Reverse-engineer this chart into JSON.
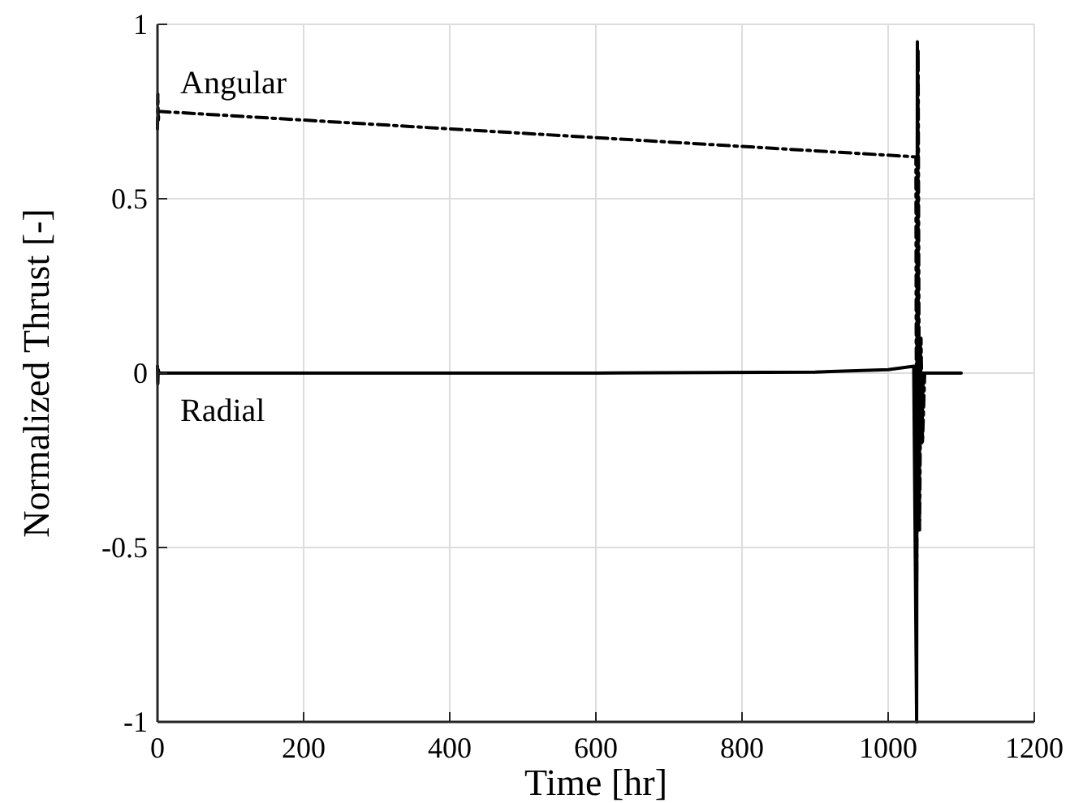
{
  "chart_data": {
    "type": "line",
    "xlabel": "Time [hr]",
    "ylabel": "Normalized Thrust [-]",
    "xlim": [
      0,
      1200
    ],
    "xticks": [
      0,
      200,
      400,
      600,
      800,
      1000,
      1200
    ],
    "ylim": [
      -1,
      1
    ],
    "yticks": [
      -1,
      -0.5,
      0,
      0.5,
      1
    ],
    "grid": true,
    "series": [
      {
        "name": "Angular",
        "color": "#000000",
        "line_style": "dashed",
        "x": [
          0,
          0.5,
          1,
          2,
          5,
          1038,
          1039,
          1041,
          1043,
          1045,
          1047,
          1050
        ],
        "values": [
          0.7,
          0.8,
          0.72,
          0.75,
          0.75,
          0.62,
          -0.6,
          0.93,
          -0.45,
          0.1,
          -0.2,
          0
        ]
      },
      {
        "name": "Radial",
        "color": "#000000",
        "line_style": "solid",
        "x": [
          0,
          0.5,
          1,
          2,
          10,
          600,
          900,
          1000,
          1035,
          1039,
          1040,
          1042,
          1044,
          1046,
          1048,
          1050,
          1100
        ],
        "values": [
          0.02,
          -0.03,
          0.01,
          0,
          0,
          0,
          0.003,
          0.01,
          0.02,
          -1,
          0.95,
          -0.4,
          0.1,
          -0.2,
          0,
          0,
          0
        ]
      }
    ]
  }
}
